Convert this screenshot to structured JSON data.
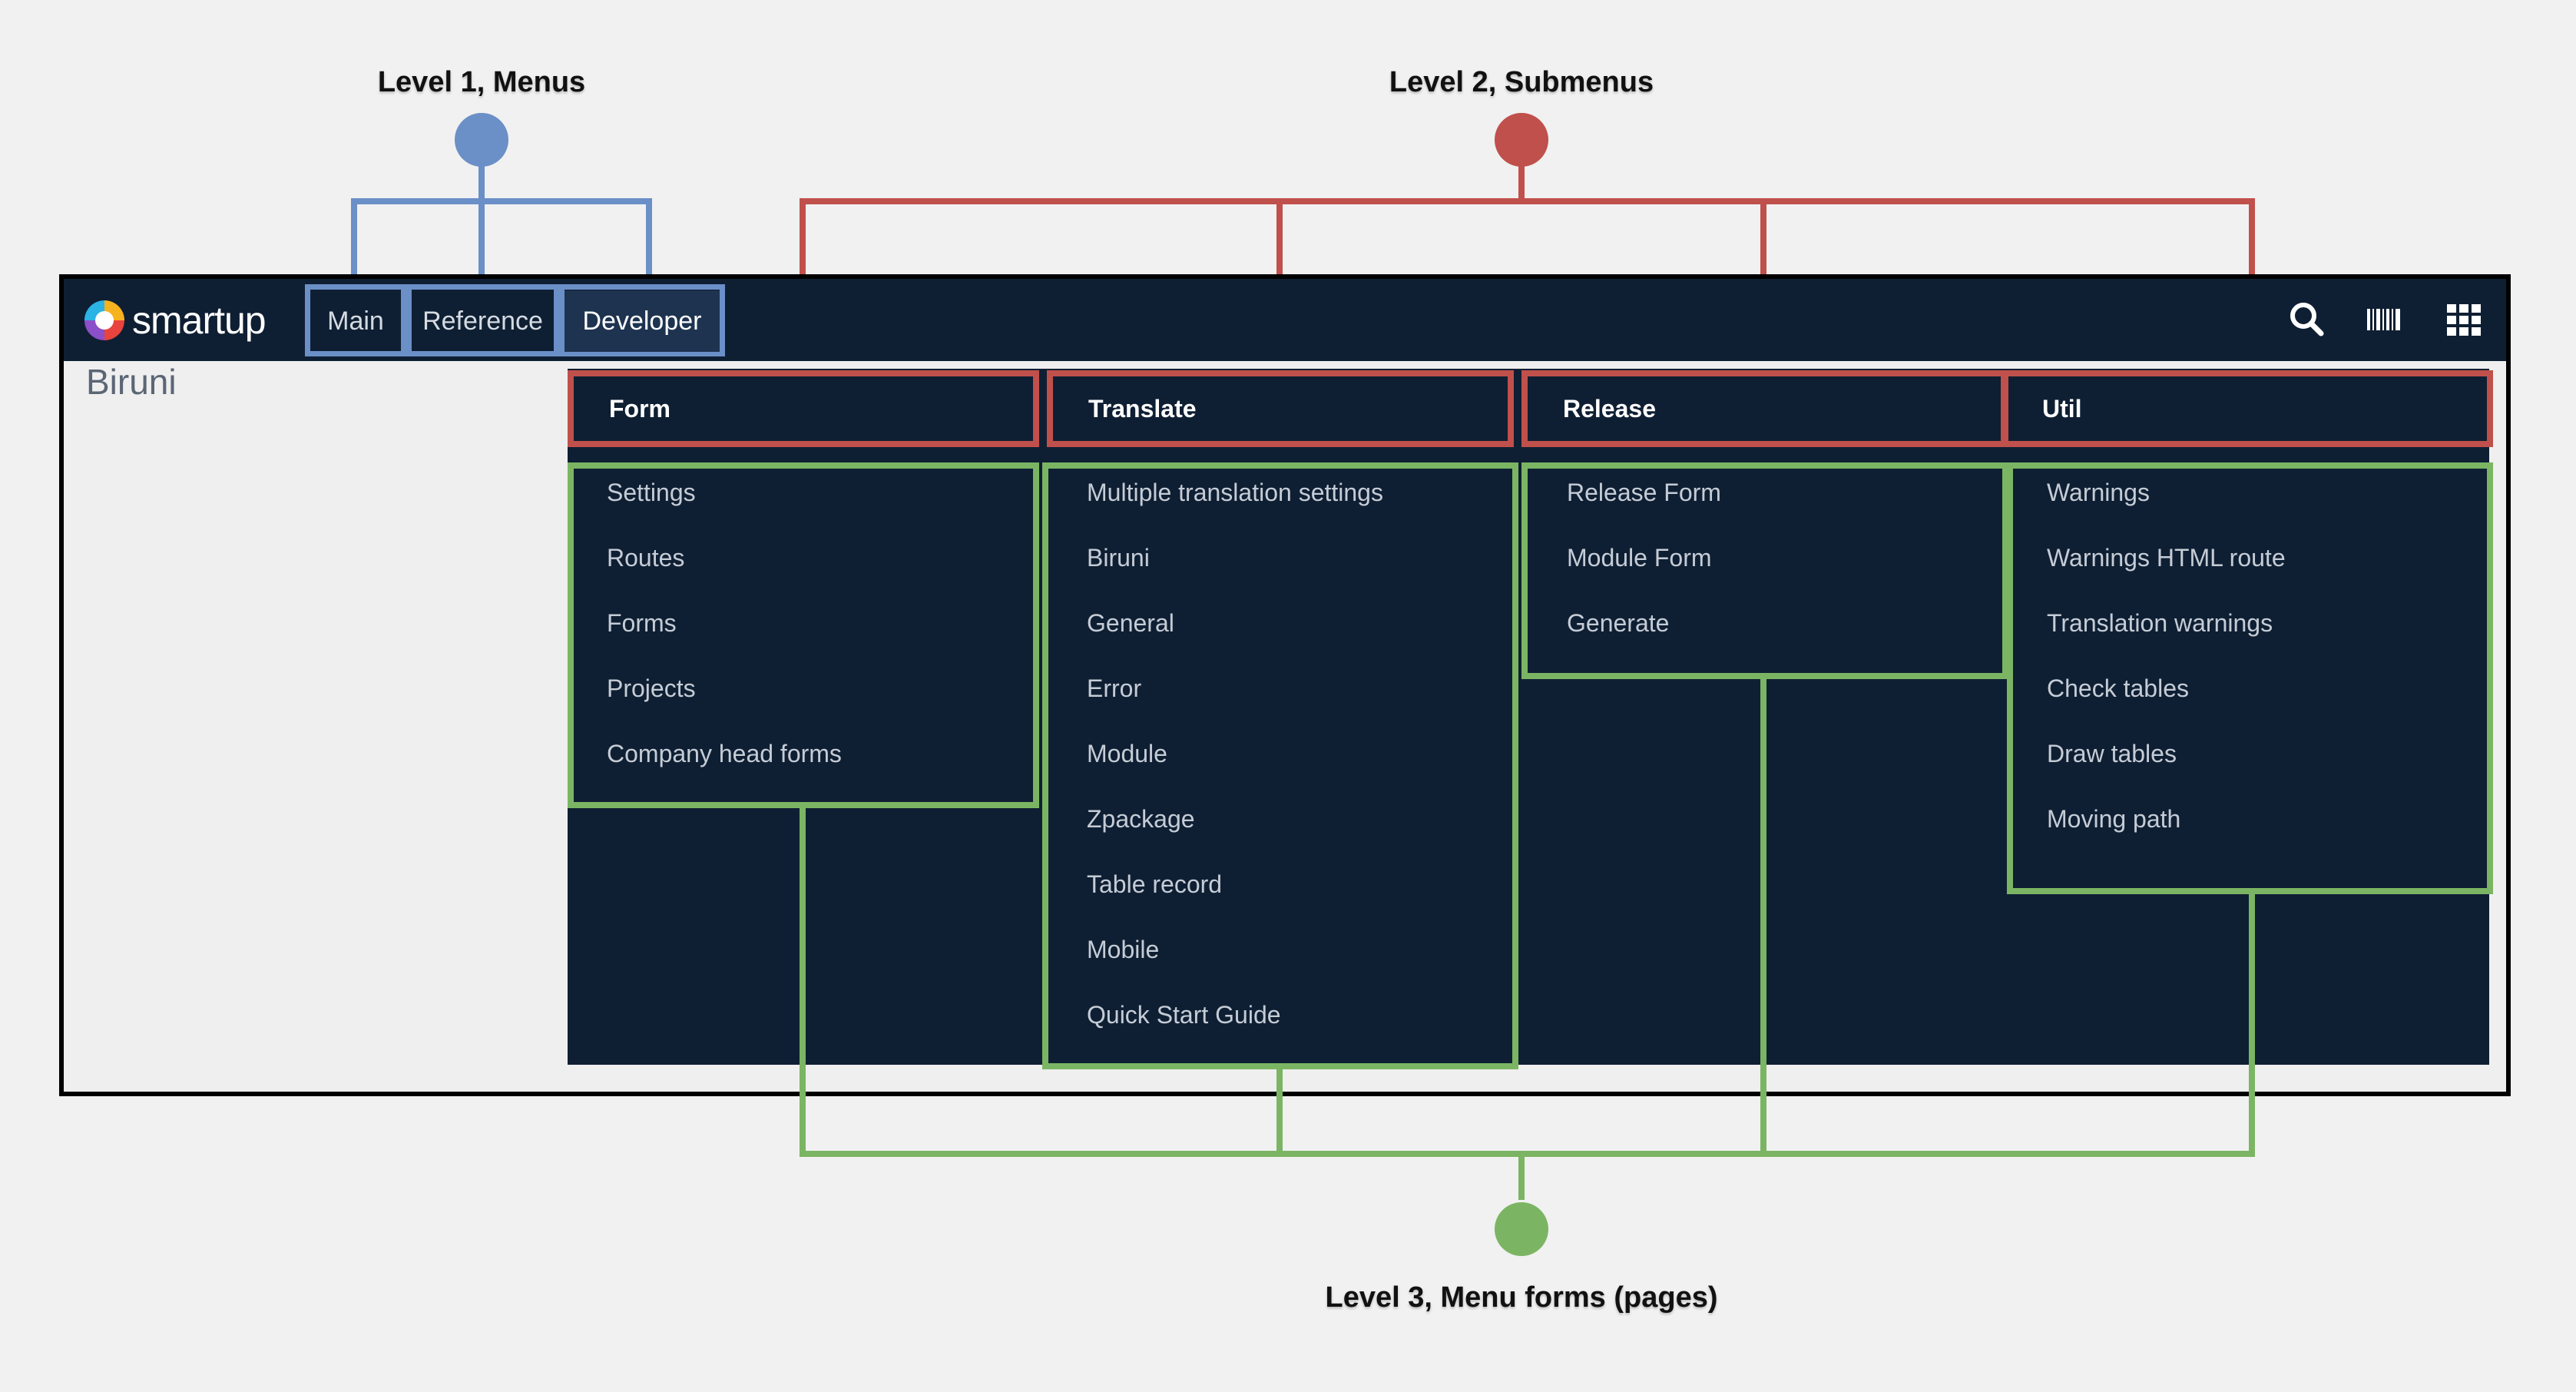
{
  "annotations": {
    "level1": "Level 1, Menus",
    "level2": "Level 2, Submenus",
    "level3": "Level 3, Menu forms (pages)"
  },
  "colors": {
    "level1": "#6b8fc7",
    "level2": "#c0504b",
    "level3": "#7bb563",
    "navbar": "#0f1f33"
  },
  "app": {
    "logo_text": "smartup",
    "page_title": "Biruni",
    "menus": [
      "Main",
      "Reference",
      "Developer"
    ],
    "active_menu": "Developer",
    "icons": [
      "search-icon",
      "barcode-icon",
      "grid-icon"
    ]
  },
  "submenus": [
    {
      "title": "Form",
      "items": [
        "Settings",
        "Routes",
        "Forms",
        "Projects",
        "Company head forms"
      ]
    },
    {
      "title": "Translate",
      "items": [
        "Multiple translation settings",
        "Biruni",
        "General",
        "Error",
        "Module",
        "Zpackage",
        "Table record",
        "Mobile",
        "Quick Start Guide"
      ]
    },
    {
      "title": "Release",
      "items": [
        "Release Form",
        "Module Form",
        "Generate"
      ]
    },
    {
      "title": "Util",
      "items": [
        "Warnings",
        "Warnings HTML route",
        "Translation warnings",
        "Check tables",
        "Draw tables",
        "Moving path"
      ]
    }
  ]
}
